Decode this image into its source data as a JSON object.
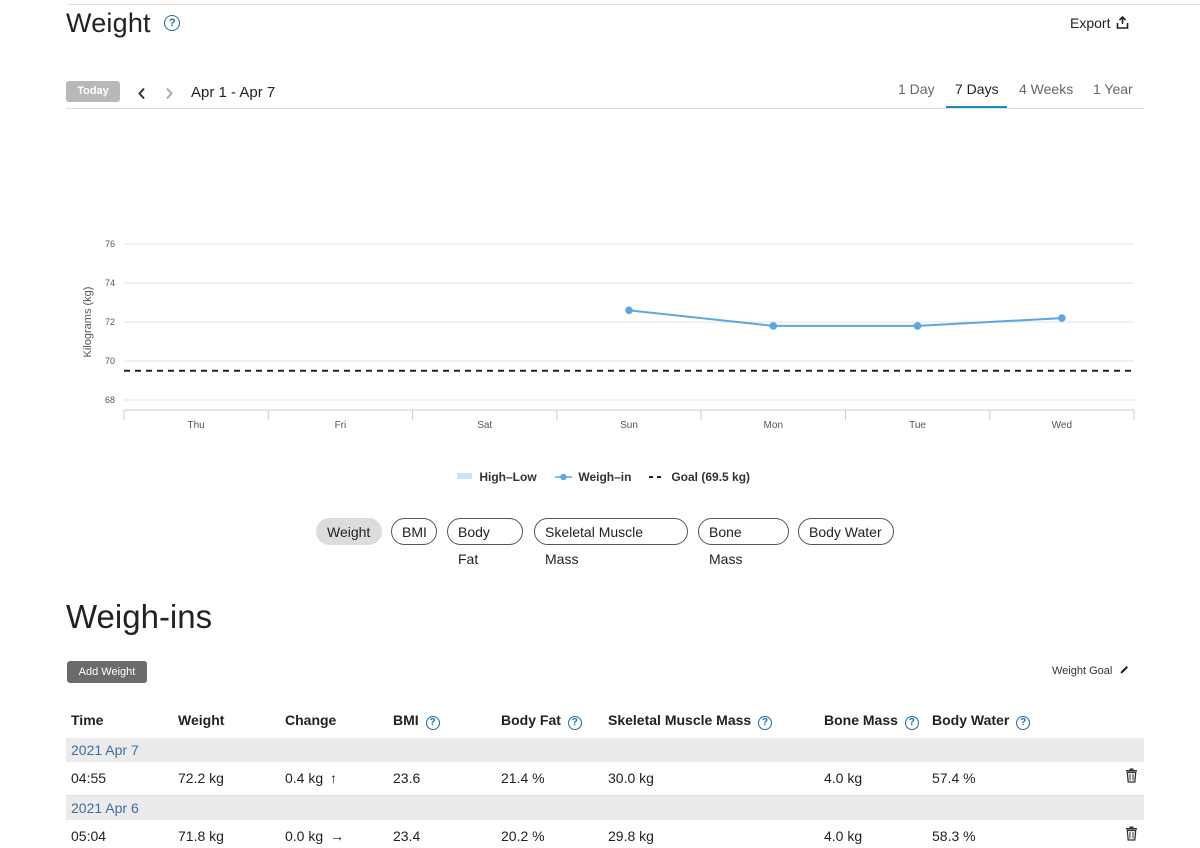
{
  "header": {
    "title": "Weight",
    "help_icon": "?",
    "export_label": "Export",
    "export_icon": "export-icon"
  },
  "toolbar": {
    "today_label": "Today",
    "date_range": "Apr 1 - Apr 7",
    "tabs": [
      {
        "label": "1 Day",
        "active": false
      },
      {
        "label": "7 Days",
        "active": true
      },
      {
        "label": "4 Weeks",
        "active": false
      },
      {
        "label": "1 Year",
        "active": false
      }
    ]
  },
  "chart_data": {
    "type": "line",
    "ylabel": "Kilograms (kg)",
    "ylim": [
      68,
      76
    ],
    "yticks": [
      "68",
      "70",
      "72",
      "74",
      "76"
    ],
    "categories": [
      "Thu",
      "Fri",
      "Sat",
      "Sun",
      "Mon",
      "Tue",
      "Wed"
    ],
    "series": [
      {
        "name": "Weigh-in",
        "values": [
          null,
          null,
          null,
          72.6,
          71.8,
          71.8,
          72.2
        ],
        "color": "#5aa7e2"
      }
    ],
    "goal": {
      "value": 69.5
    },
    "grid": true
  },
  "legend": {
    "high_low": "High–Low",
    "weigh_in": "Weigh–in",
    "goal": "Goal (69.5 kg)"
  },
  "metric_chips": [
    "Weight",
    "BMI",
    "Body Fat",
    "Skeletal Muscle Mass",
    "Bone Mass",
    "Body Water"
  ],
  "weighins": {
    "title": "Weigh-ins",
    "add_label": "Add Weight",
    "goal_label": "Weight Goal",
    "columns": [
      "Time",
      "Weight",
      "Change",
      "BMI",
      "Body Fat",
      "Skeletal Muscle Mass",
      "Bone Mass",
      "Body Water"
    ],
    "groups": [
      {
        "date": "2021 Apr 7",
        "time": "04:55",
        "weight": "72.2 kg",
        "change": "0.4 kg",
        "change_arrow": "↑",
        "bmi": "23.6",
        "body_fat": "21.4 %",
        "muscle": "30.0 kg",
        "bone": "4.0 kg",
        "water": "57.4 %"
      },
      {
        "date": "2021 Apr 6",
        "time": "05:04",
        "weight": "71.8 kg",
        "change": "0.0 kg",
        "change_arrow": "→",
        "bmi": "23.4",
        "body_fat": "20.2 %",
        "muscle": "29.8 kg",
        "bone": "4.0 kg",
        "water": "58.3 %"
      }
    ]
  }
}
